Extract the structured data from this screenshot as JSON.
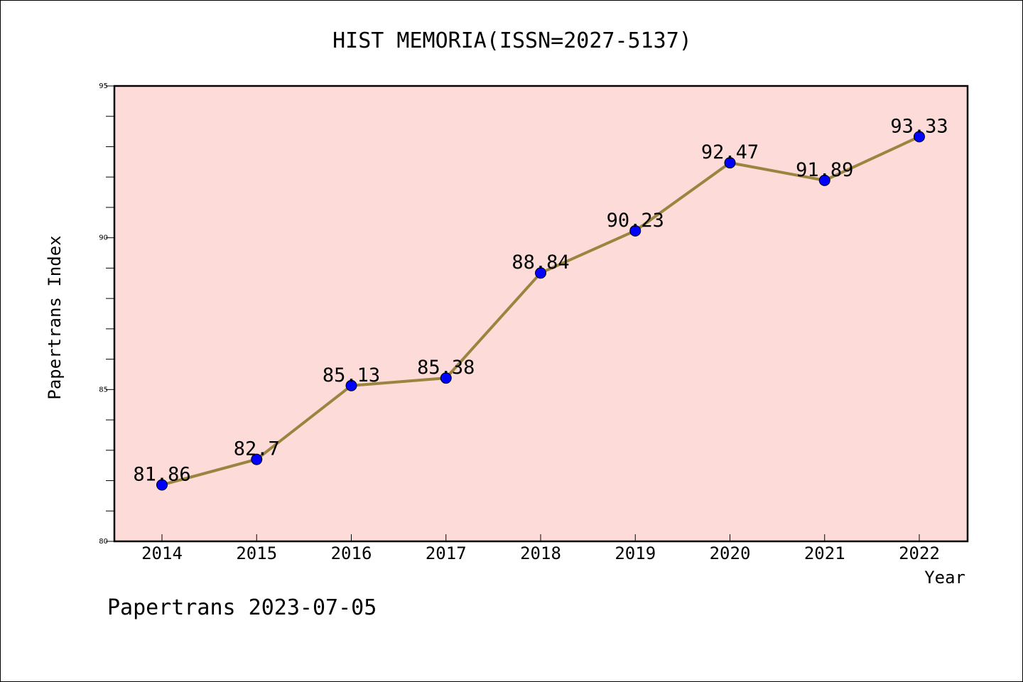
{
  "footer": "Papertrans 2023-07-05",
  "colors": {
    "plot_background": "#fddbd8",
    "line": "#9a8540",
    "marker": "#0000ff"
  },
  "chart_data": {
    "type": "line",
    "title": "HIST MEMORIA(ISSN=2027-5137)",
    "xlabel": "Year",
    "ylabel": "Papertrans Index",
    "categories": [
      "2014",
      "2015",
      "2016",
      "2017",
      "2018",
      "2019",
      "2020",
      "2021",
      "2022"
    ],
    "series": [
      {
        "values": [
          81.86,
          82.7,
          85.13,
          85.38,
          88.84,
          90.23,
          92.47,
          91.89,
          93.33
        ],
        "labels": [
          "81.86",
          "82.7",
          "85.13",
          "85.38",
          "88.84",
          "90.23",
          "92.47",
          "91.89",
          "93.33"
        ]
      }
    ],
    "ylim": [
      80,
      95
    ],
    "yticks": [
      "80",
      "85",
      "90",
      "95"
    ],
    "grid": false,
    "legend": "none"
  }
}
